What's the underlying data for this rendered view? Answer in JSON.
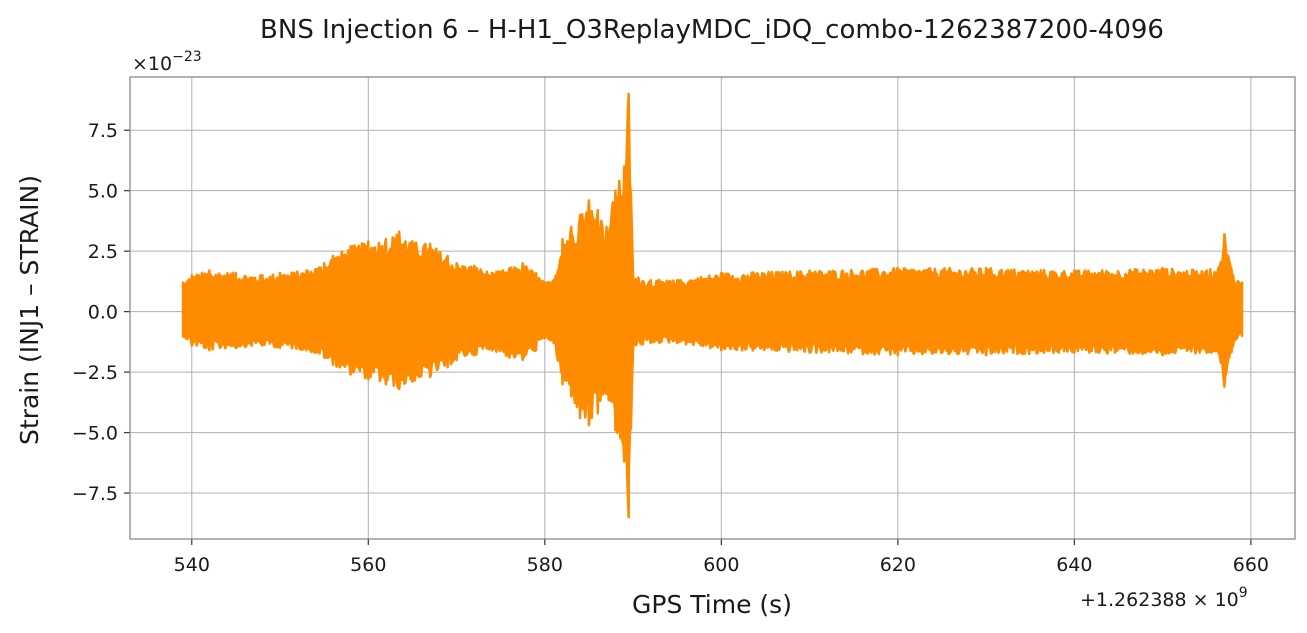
{
  "chart_data": {
    "type": "line",
    "title": "BNS Injection 6 – H-H1_O3ReplayMDC_iDQ_combo-1262387200-4096",
    "xlabel": "GPS Time (s)",
    "ylabel": "Strain (INJ1 – STRAIN)",
    "y_scale_label": "×10",
    "y_scale_exponent": "−23",
    "x_offset_label": "+1.262388 × 10",
    "x_offset_exponent": "9",
    "xlim": [
      533,
      665
    ],
    "ylim": [
      -9.4,
      9.7
    ],
    "xticks": [
      540,
      560,
      580,
      600,
      620,
      640,
      660
    ],
    "xtick_labels": [
      "540",
      "560",
      "580",
      "600",
      "620",
      "640",
      "660"
    ],
    "yticks": [
      -7.5,
      -5.0,
      -2.5,
      0.0,
      2.5,
      5.0,
      7.5
    ],
    "ytick_labels": [
      "−7.5",
      "−5.0",
      "−2.5",
      "0.0",
      "2.5",
      "5.0",
      "7.5"
    ],
    "grid": true,
    "series": [
      {
        "color": "#ff8c00",
        "envelope": {
          "x": [
            539,
            540,
            542,
            545,
            548,
            550,
            553,
            555,
            556,
            558,
            560,
            562,
            563.5,
            565,
            567,
            569,
            570,
            572,
            574,
            576,
            577.5,
            579,
            580,
            581,
            582,
            583,
            584,
            585,
            586,
            587,
            588,
            589,
            589.5,
            590,
            592,
            595,
            600,
            610,
            620,
            630,
            640,
            650,
            655,
            656.5,
            657,
            658,
            659
          ],
          "upper": [
            1.2,
            1.5,
            1.7,
            1.6,
            1.5,
            1.6,
            1.7,
            2.0,
            2.3,
            2.7,
            2.9,
            3.0,
            3.3,
            2.9,
            2.8,
            2.3,
            2.0,
            1.9,
            1.6,
            1.8,
            2.0,
            1.6,
            1.2,
            1.3,
            3.0,
            3.5,
            4.0,
            4.6,
            4.2,
            3.5,
            5.0,
            6.0,
            9.0,
            1.5,
            1.3,
            1.3,
            1.6,
            1.7,
            1.8,
            1.8,
            1.7,
            1.8,
            1.7,
            1.9,
            3.2,
            1.5,
            1.2
          ],
          "lower": [
            -1.0,
            -1.4,
            -1.6,
            -1.5,
            -1.4,
            -1.5,
            -1.6,
            -1.9,
            -2.2,
            -2.6,
            -2.8,
            -3.0,
            -3.2,
            -2.9,
            -2.7,
            -2.3,
            -2.0,
            -1.8,
            -1.6,
            -1.9,
            -2.0,
            -1.6,
            -1.1,
            -1.3,
            -3.0,
            -3.5,
            -4.4,
            -4.7,
            -4.2,
            -3.4,
            -4.9,
            -6.2,
            -8.5,
            -1.5,
            -1.3,
            -1.3,
            -1.6,
            -1.7,
            -1.8,
            -1.8,
            -1.7,
            -1.8,
            -1.7,
            -1.9,
            -3.1,
            -1.4,
            -1.0
          ]
        }
      }
    ]
  }
}
